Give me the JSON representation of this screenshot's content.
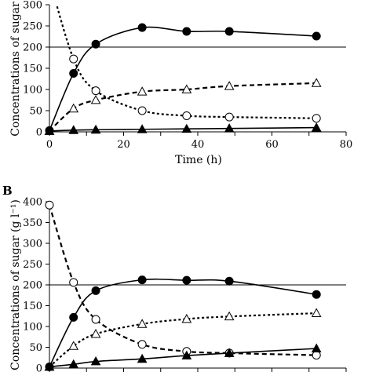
{
  "chart_data": [
    {
      "type": "line",
      "panel_label": "",
      "xlabel": "Time (h)",
      "ylabel": "Concentrations of sugar",
      "xlim": [
        0,
        80
      ],
      "ylim": [
        0,
        300
      ],
      "xticks": [
        "0",
        "20",
        "40",
        "60",
        "80"
      ],
      "yticks": [
        "0",
        "50",
        "100",
        "150",
        "200",
        "250",
        "300"
      ],
      "reference_line_y": 200,
      "series": [
        {
          "marker": "filled-circle",
          "line": "solid",
          "x": [
            0,
            6.5,
            12.5,
            25,
            37,
            48.5,
            72
          ],
          "y": [
            3,
            138,
            207,
            246,
            237,
            237,
            226
          ]
        },
        {
          "marker": "open-circle",
          "line": "dotted",
          "x": [
            0,
            6.5,
            12.5,
            25,
            37,
            48.5,
            72
          ],
          "y": [
            360,
            172,
            97,
            50,
            38,
            35,
            32
          ]
        },
        {
          "marker": "open-triangle",
          "line": "dashed",
          "x": [
            0,
            6.5,
            12.5,
            25,
            37,
            48.5,
            72
          ],
          "y": [
            2,
            55,
            75,
            95,
            100,
            108,
            115
          ]
        },
        {
          "marker": "filled-triangle",
          "line": "solid",
          "x": [
            0,
            6.5,
            12.5,
            25,
            37,
            48.5,
            72
          ],
          "y": [
            2,
            4,
            5,
            6,
            7,
            8,
            10
          ]
        }
      ]
    },
    {
      "type": "line",
      "panel_label": "B",
      "xlabel": "",
      "ylabel": "Concentrations of sugar (g l⁻¹)",
      "xlim": [
        0,
        80
      ],
      "ylim": [
        0,
        400
      ],
      "xticks": [],
      "yticks": [
        "0",
        "50",
        "100",
        "150",
        "200",
        "250",
        "300",
        "350",
        "400"
      ],
      "reference_line_y": 200,
      "series": [
        {
          "marker": "filled-circle",
          "line": "solid",
          "x": [
            0,
            6.5,
            12.5,
            25,
            37,
            48.5,
            72
          ],
          "y": [
            3,
            122,
            186,
            212,
            211,
            209,
            177
          ]
        },
        {
          "marker": "open-circle",
          "line": "dashed",
          "x": [
            0,
            6.5,
            12.5,
            25,
            37,
            48.5,
            72
          ],
          "y": [
            392,
            206,
            117,
            57,
            40,
            36,
            31
          ]
        },
        {
          "marker": "open-triangle",
          "line": "dotted",
          "x": [
            0,
            6.5,
            12.5,
            25,
            37,
            48.5,
            72
          ],
          "y": [
            3,
            53,
            82,
            106,
            118,
            124,
            132
          ]
        },
        {
          "marker": "filled-triangle",
          "line": "solid",
          "x": [
            0,
            6.5,
            12.5,
            25,
            37,
            48.5,
            72
          ],
          "y": [
            3,
            9,
            16,
            22,
            30,
            36,
            47
          ]
        }
      ]
    }
  ]
}
